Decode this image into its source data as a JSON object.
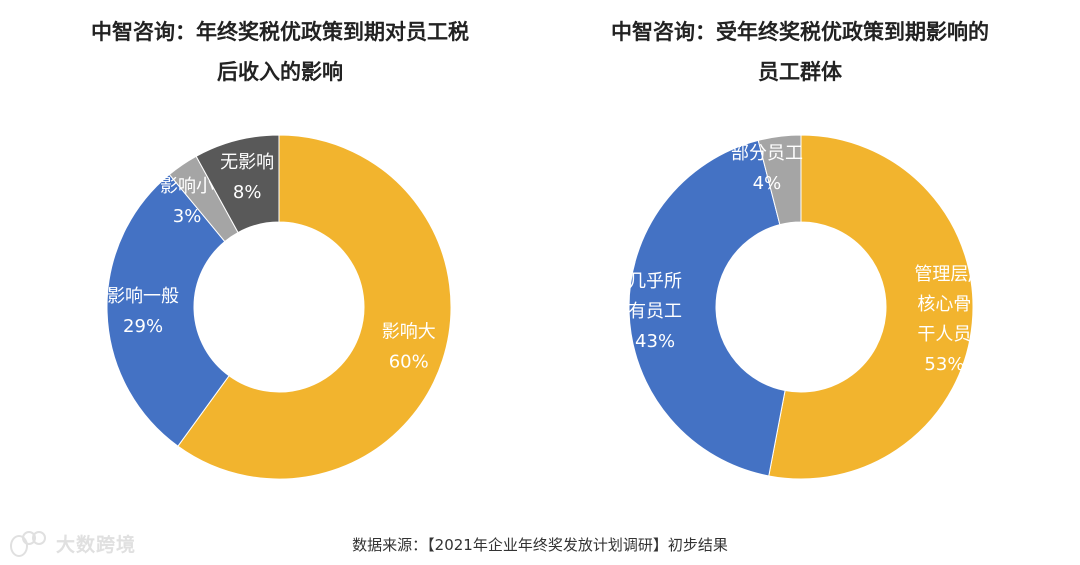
{
  "chart_data": [
    {
      "type": "pie",
      "variant": "donut",
      "title": "中智咨询：年终奖税优政策到期对员工税\n后收入的影响",
      "start_angle": "12 o'clock, clockwise",
      "slices": [
        {
          "name": "影响大",
          "value": 60,
          "label_lines": [
            "影响大",
            "60%"
          ],
          "color": "#F2B42E"
        },
        {
          "name": "影响一般",
          "value": 29,
          "label_lines": [
            "影响一般",
            "29%"
          ],
          "color": "#4472C4"
        },
        {
          "name": "影响小",
          "value": 3,
          "label_lines": [
            "影响小",
            "3%"
          ],
          "color": "#A5A5A5"
        },
        {
          "name": "无影响",
          "value": 8,
          "label_lines": [
            "无影响",
            "8%"
          ],
          "color": "#595959"
        }
      ]
    },
    {
      "type": "pie",
      "variant": "donut",
      "title": "中智咨询：受年终奖税优政策到期影响的\n员工群体",
      "start_angle": "12 o'clock, clockwise",
      "slices": [
        {
          "name": "管理层/核心骨干人员",
          "value": 53,
          "label_lines": [
            "管理层/",
            "核心骨",
            "干人员",
            "53%"
          ],
          "color": "#F2B42E"
        },
        {
          "name": "几乎所有员工",
          "value": 43,
          "label_lines": [
            "几乎所",
            "有员工",
            "43%"
          ],
          "color": "#4472C4"
        },
        {
          "name": "部分员工",
          "value": 4,
          "label_lines": [
            "部分员工",
            "4%"
          ],
          "color": "#A5A5A5"
        }
      ]
    }
  ],
  "footer": {
    "source": "数据来源：【2021年企业年终奖发放计划调研】初步结果"
  },
  "watermark": {
    "text": "大数跨境"
  }
}
